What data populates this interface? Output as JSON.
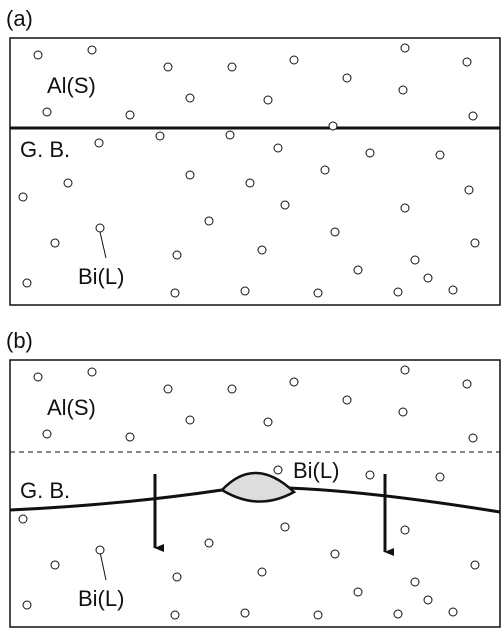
{
  "panels": [
    {
      "label": "(a)",
      "solid": "Al(S)",
      "boundary": "G. B.",
      "liquid": "Bi(L)"
    },
    {
      "label": "(b)",
      "solid": "Al(S)",
      "boundary": "G. B.",
      "liquid": "Bi(L)",
      "lens": "Bi(L)"
    }
  ]
}
